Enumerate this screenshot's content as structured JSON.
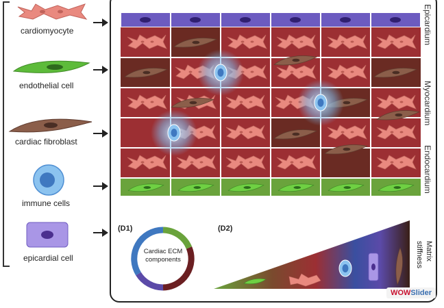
{
  "legend": {
    "cardiomyocyte": "cardiomyocyte",
    "endothelial": "endothelial cell",
    "fibroblast": "cardiac fibroblast",
    "immune": "immune cells",
    "epicardial": "epicardial cell"
  },
  "layers": {
    "epicardium": "Epicardium",
    "myocardium": "Myocardium",
    "endocardium": "Endocardium"
  },
  "panel_d1": {
    "tag": "(D1)",
    "ring_text_line1": "Cardiac ECM",
    "ring_text_line2": "components"
  },
  "panel_d2": {
    "tag": "(D2)",
    "axis_line1": "Matrix",
    "axis_line2": "stiffness"
  },
  "watermark": {
    "part1": "WOW",
    "part2": "Slider"
  },
  "colors": {
    "epicardium": "#5b4aa8",
    "myocardium": "#9c2f33",
    "endocardium": "#6aa33c",
    "cardiomyocyte": "#e9897f",
    "fibroblast": "#8b5e4a",
    "endothelial": "#5dbb3a",
    "immune": "#4f8fd3"
  }
}
